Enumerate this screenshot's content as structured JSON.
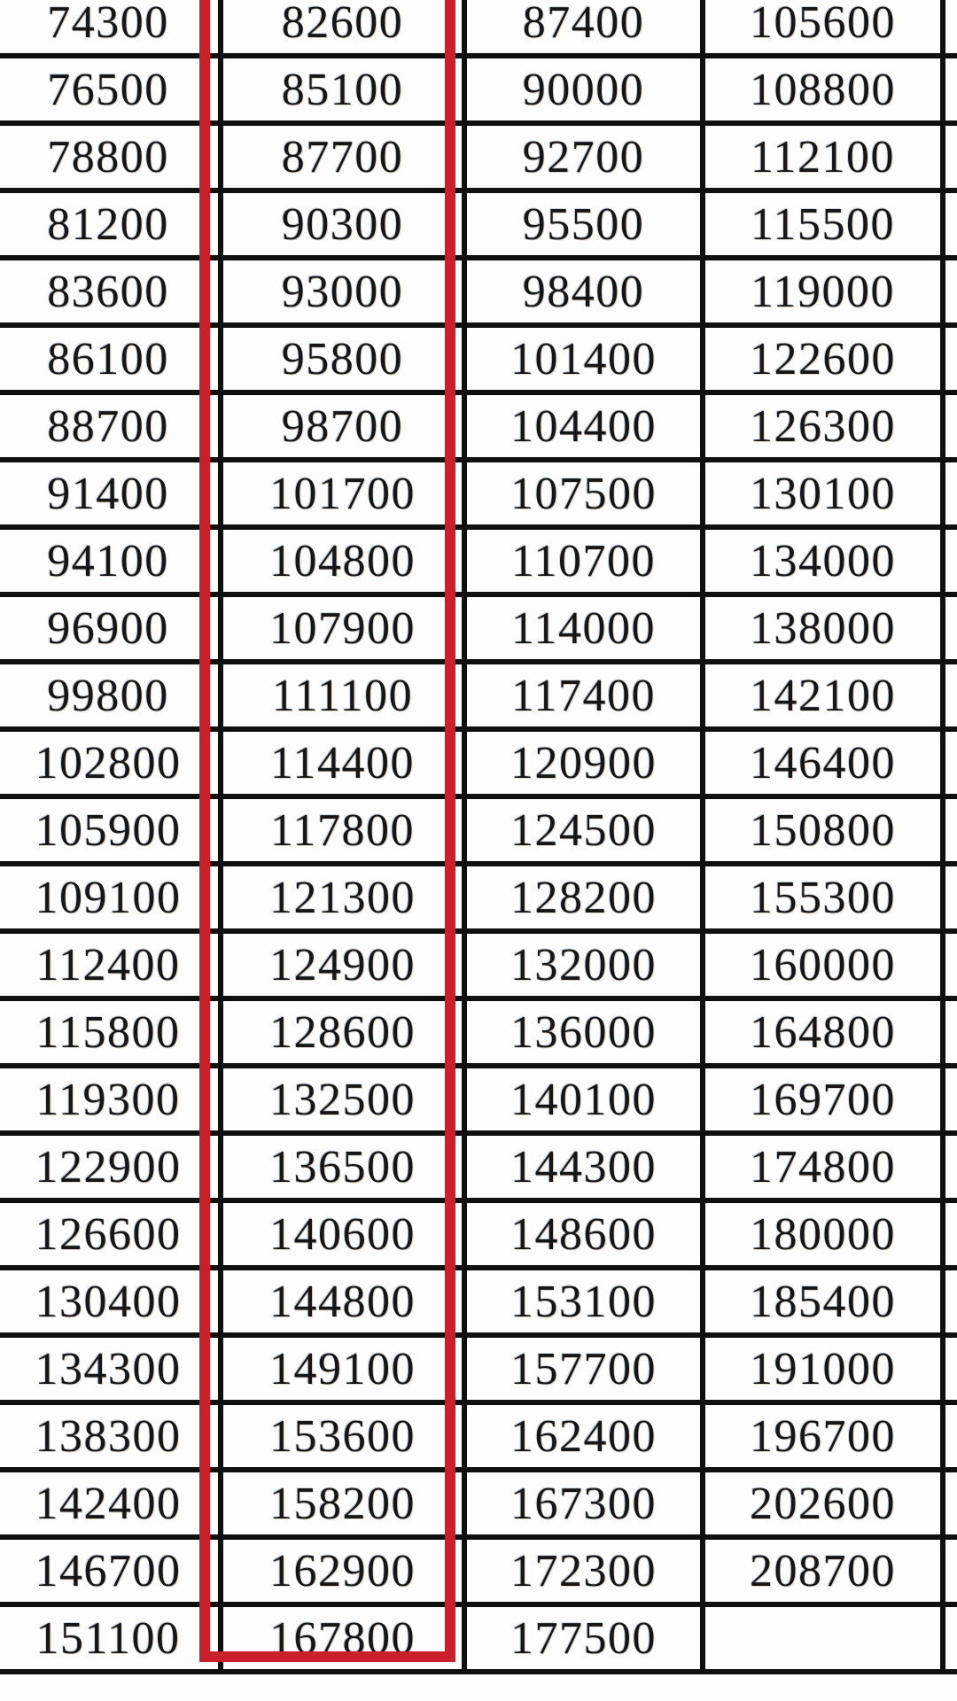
{
  "colors": {
    "background": "#fdfdfd",
    "grid_border": "#101010",
    "text": "#161616",
    "highlight_red": "#c9202a"
  },
  "highlight": {
    "shape": "red-rectangle",
    "highlighted_column_index": 1,
    "color": "#c9202a",
    "top_edge_cut_off": true
  },
  "table": {
    "type": "table",
    "visible_columns": 4,
    "clipped_fifth_column": true,
    "rows": [
      [
        "74300",
        "82600",
        "87400",
        "105600"
      ],
      [
        "76500",
        "85100",
        "90000",
        "108800"
      ],
      [
        "78800",
        "87700",
        "92700",
        "112100"
      ],
      [
        "81200",
        "90300",
        "95500",
        "115500"
      ],
      [
        "83600",
        "93000",
        "98400",
        "119000"
      ],
      [
        "86100",
        "95800",
        "101400",
        "122600"
      ],
      [
        "88700",
        "98700",
        "104400",
        "126300"
      ],
      [
        "91400",
        "101700",
        "107500",
        "130100"
      ],
      [
        "94100",
        "104800",
        "110700",
        "134000"
      ],
      [
        "96900",
        "107900",
        "114000",
        "138000"
      ],
      [
        "99800",
        "111100",
        "117400",
        "142100"
      ],
      [
        "102800",
        "114400",
        "120900",
        "146400"
      ],
      [
        "105900",
        "117800",
        "124500",
        "150800"
      ],
      [
        "109100",
        "121300",
        "128200",
        "155300"
      ],
      [
        "112400",
        "124900",
        "132000",
        "160000"
      ],
      [
        "115800",
        "128600",
        "136000",
        "164800"
      ],
      [
        "119300",
        "132500",
        "140100",
        "169700"
      ],
      [
        "122900",
        "136500",
        "144300",
        "174800"
      ],
      [
        "126600",
        "140600",
        "148600",
        "180000"
      ],
      [
        "130400",
        "144800",
        "153100",
        "185400"
      ],
      [
        "134300",
        "149100",
        "157700",
        "191000"
      ],
      [
        "138300",
        "153600",
        "162400",
        "196700"
      ],
      [
        "142400",
        "158200",
        "167300",
        "202600"
      ],
      [
        "146700",
        "162900",
        "172300",
        "208700"
      ],
      [
        "151100",
        "167800",
        "177500",
        ""
      ]
    ]
  }
}
